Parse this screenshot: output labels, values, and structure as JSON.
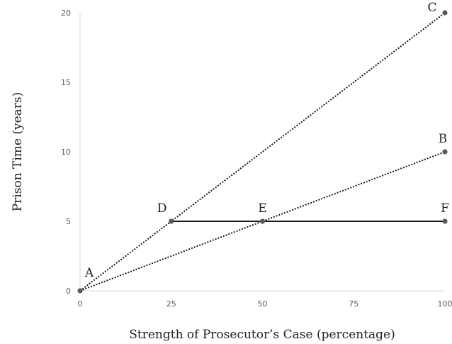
{
  "chart_data": {
    "type": "line",
    "title": "",
    "xlabel": "Strength of Prosecutor’s Case (percentage)",
    "ylabel": "Prison Time (years)",
    "xlim": [
      0,
      100
    ],
    "ylim": [
      0,
      20
    ],
    "x_ticks": [
      "0",
      "25",
      "50",
      "75",
      "100"
    ],
    "y_ticks": [
      "0",
      "5",
      "10",
      "15",
      "20"
    ],
    "grid": false,
    "points": [
      {
        "label": "A",
        "x": 0,
        "y": 0
      },
      {
        "label": "B",
        "x": 100,
        "y": 10
      },
      {
        "label": "C",
        "x": 100,
        "y": 20
      },
      {
        "label": "D",
        "x": 25,
        "y": 5
      },
      {
        "label": "E",
        "x": 50,
        "y": 5
      },
      {
        "label": "F",
        "x": 100,
        "y": 5
      }
    ],
    "series": [
      {
        "from": "A",
        "to": "C",
        "style": "dotted"
      },
      {
        "from": "A",
        "to": "B",
        "style": "dotted"
      },
      {
        "from": "D",
        "to": "F",
        "style": "solid"
      }
    ],
    "colors": {
      "line": "#1a1a1a",
      "marker": "#595959",
      "axis": "#d9d9d9"
    }
  }
}
